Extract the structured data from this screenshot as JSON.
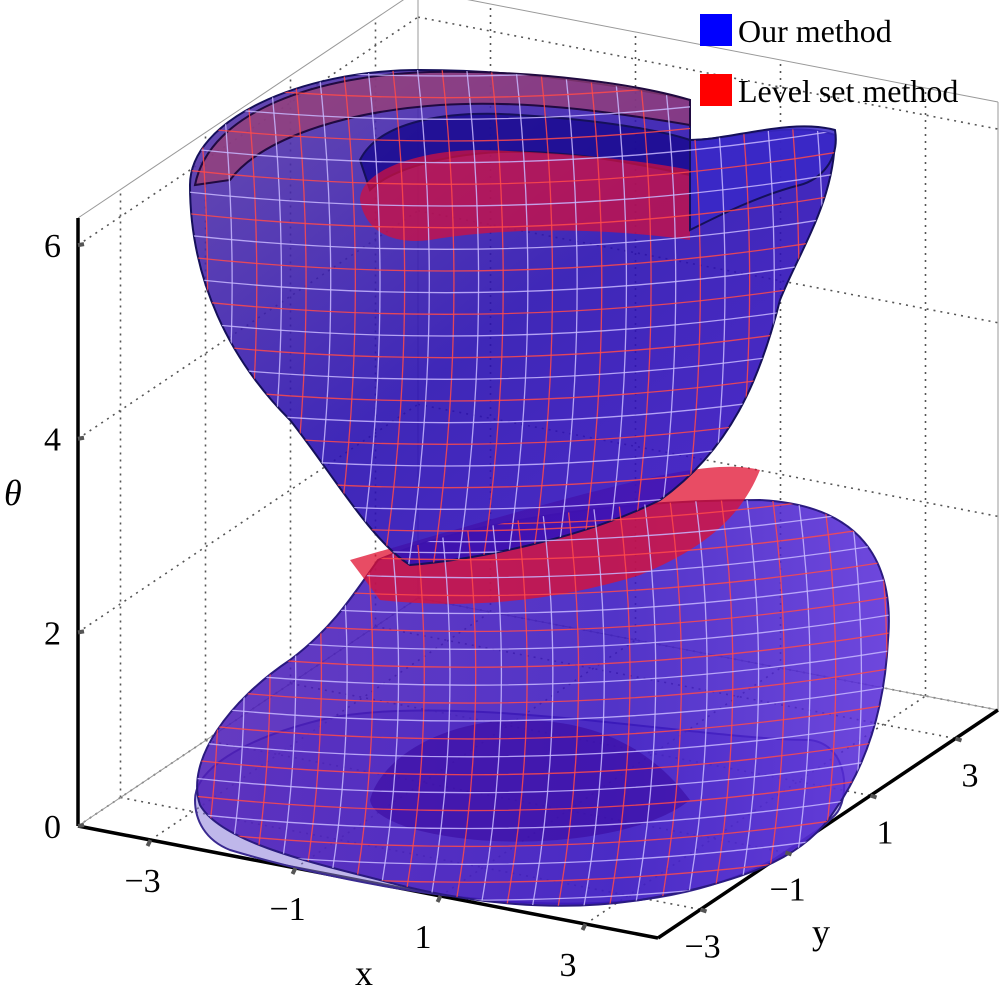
{
  "chart_data": {
    "type": "surface3d",
    "title": "",
    "xlabel": "x",
    "ylabel": "y",
    "zlabel": "θ",
    "x_ticks": [
      "−3",
      "−1",
      "1",
      "3"
    ],
    "y_ticks": [
      "−3",
      "−1",
      "1",
      "3"
    ],
    "z_ticks": [
      "0",
      "2",
      "4",
      "6"
    ],
    "xlim": [
      -4,
      4
    ],
    "ylim": [
      -4,
      4
    ],
    "zlim": [
      0,
      6.28
    ],
    "grid": true,
    "legend_position": "top-right",
    "series": [
      {
        "name": "Our method",
        "color": "#0000ff"
      },
      {
        "name": "Level set method",
        "color": "#ff0000"
      }
    ]
  }
}
